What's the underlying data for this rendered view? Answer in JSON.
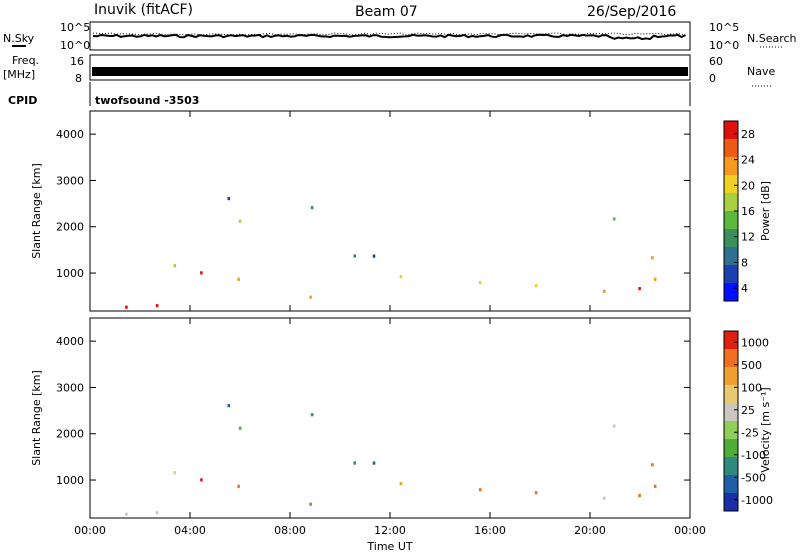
{
  "header": {
    "station": "Inuvik (fitACF)",
    "beam": "Beam 07",
    "date": "26/Sep/2016"
  },
  "noise_panel": {
    "left_label": "N.Sky",
    "right_label": "N.Search",
    "left_ticks": [
      "10^5",
      "10^0"
    ],
    "right_ticks": [
      "10^5",
      "10^0"
    ]
  },
  "freq_panel": {
    "left_label_1": "Freq.",
    "left_label_2": "[MHz]",
    "right_label": "Nave",
    "left_ticks": [
      "16",
      "8"
    ],
    "right_ticks": [
      "60",
      "0"
    ]
  },
  "cpid": {
    "label": "CPID",
    "value": "twofsound -3503"
  },
  "colors": {
    "power_scale": [
      "#0010ff",
      "#1a3fb0",
      "#2f6f8f",
      "#3c8f5a",
      "#5cb83a",
      "#a8d040",
      "#f0d020",
      "#f39a1f",
      "#ec5a14",
      "#e01010"
    ],
    "velocity_scale": [
      "#1a2ea8",
      "#1f5fa8",
      "#2e8a7a",
      "#4fae3a",
      "#8fce5a",
      "#c8c8c0",
      "#e8c870",
      "#f0a030",
      "#f07020",
      "#e02010"
    ]
  },
  "chart_data": [
    {
      "type": "heatmap",
      "title": "Power",
      "ylabel": "Slant Range [km]",
      "xlabel": "",
      "x_range": [
        "00:00",
        "24:00"
      ],
      "ylim": [
        180,
        4500
      ],
      "yticks": [
        "1000",
        "2000",
        "3000",
        "4000"
      ],
      "xticks": [
        "00:00",
        "04:00",
        "08:00",
        "12:00",
        "16:00",
        "20:00",
        "00:00"
      ],
      "colorbar": {
        "label": "Power [dB]",
        "ticks": [
          "28",
          "24",
          "20",
          "16",
          "12",
          "8",
          "4"
        ],
        "range": [
          0,
          30
        ]
      }
    },
    {
      "type": "heatmap",
      "title": "Velocity",
      "ylabel": "Slant Range [km]",
      "xlabel": "Time UT",
      "x_range": [
        "00:00",
        "24:00"
      ],
      "ylim": [
        180,
        4500
      ],
      "yticks": [
        "1000",
        "2000",
        "3000",
        "4000"
      ],
      "xticks": [
        "00:00",
        "04:00",
        "08:00",
        "12:00",
        "16:00",
        "20:00",
        "00:00"
      ],
      "colorbar": {
        "label": "Velocity [m s⁻¹]",
        "ticks": [
          "1000",
          "500",
          "100",
          "25",
          "-25",
          "-100",
          "-500",
          "-1000"
        ],
        "range": [
          -1000,
          1000
        ]
      }
    }
  ]
}
